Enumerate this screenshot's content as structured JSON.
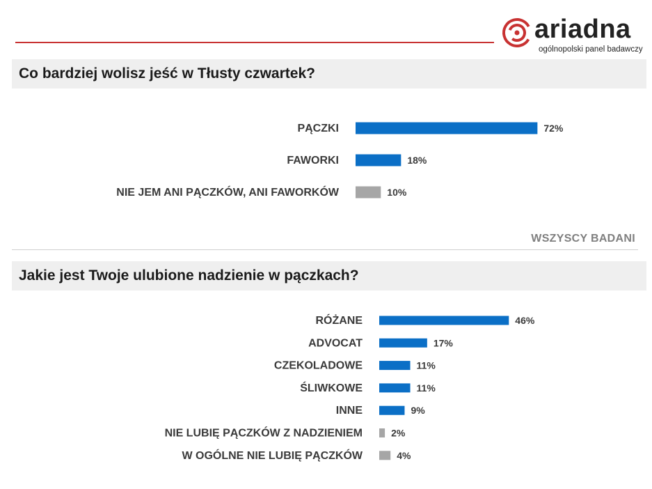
{
  "logo": {
    "wordmark": "ariadna",
    "tagline": "ogólnopolski panel badawczy"
  },
  "base_note": "WSZYSCY BADANI",
  "colors": {
    "accent": "#c83232",
    "bar_blue": "#0b6fc6",
    "bar_gray": "#a6a6a6"
  },
  "chart_data": [
    {
      "type": "bar",
      "orientation": "horizontal",
      "title": "Co bardziej wolisz jeść w Tłusty czwartek?",
      "categories": [
        "PĄCZKI",
        "FAWORKI",
        "NIE JEM ANI PĄCZKÓW, ANI FAWORKÓW"
      ],
      "values": [
        72,
        18,
        10
      ],
      "value_labels": [
        "72%",
        "18%",
        "10%"
      ],
      "bar_colors": [
        "blue",
        "blue",
        "gray"
      ],
      "unit": "%"
    },
    {
      "type": "bar",
      "orientation": "horizontal",
      "title": "Jakie jest Twoje ulubione nadzienie w pączkach?",
      "categories": [
        "RÓŻANE",
        "ADVOCAT",
        "CZEKOLADOWE",
        "ŚLIWKOWE",
        "INNE",
        "NIE LUBIĘ PĄCZKÓW Z NADZIENIEM",
        "W OGÓLNE NIE LUBIĘ PĄCZKÓW"
      ],
      "values": [
        46,
        17,
        11,
        11,
        9,
        2,
        4
      ],
      "value_labels": [
        "46%",
        "17%",
        "11%",
        "11%",
        "9%",
        "2%",
        "4%"
      ],
      "bar_colors": [
        "blue",
        "blue",
        "blue",
        "blue",
        "blue",
        "gray",
        "gray"
      ],
      "unit": "%"
    }
  ]
}
